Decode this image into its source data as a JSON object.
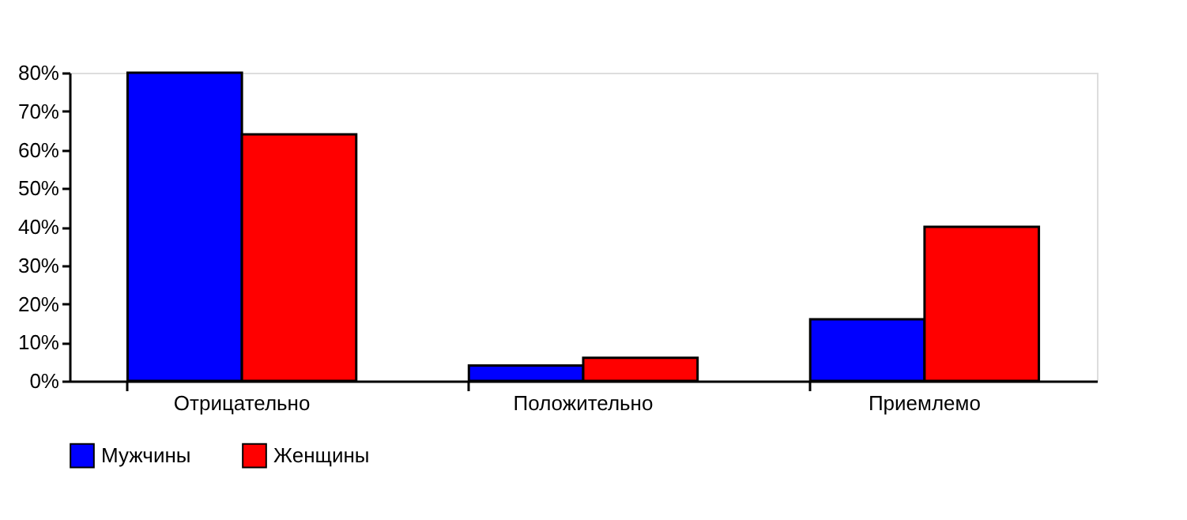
{
  "chart_data": {
    "type": "bar",
    "categories": [
      "Отрицательно",
      "Положительно",
      "Приемлемо"
    ],
    "series": [
      {
        "name": "Мужчины",
        "color": "#0000ff",
        "values": [
          80,
          4,
          16
        ]
      },
      {
        "name": "Женщины",
        "color": "#ff0000",
        "values": [
          64,
          6,
          40
        ]
      }
    ],
    "ylim": [
      0,
      80
    ],
    "yticks": [
      {
        "value": 0,
        "label": "0%"
      },
      {
        "value": 10,
        "label": "10%"
      },
      {
        "value": 20,
        "label": "20%"
      },
      {
        "value": 30,
        "label": "30%"
      },
      {
        "value": 40,
        "label": "40%"
      },
      {
        "value": 50,
        "label": "50%"
      },
      {
        "value": 60,
        "label": "60%"
      },
      {
        "value": 70,
        "label": "70%"
      },
      {
        "value": 80,
        "label": "80%"
      }
    ],
    "grid": false,
    "legend": "bottom"
  }
}
